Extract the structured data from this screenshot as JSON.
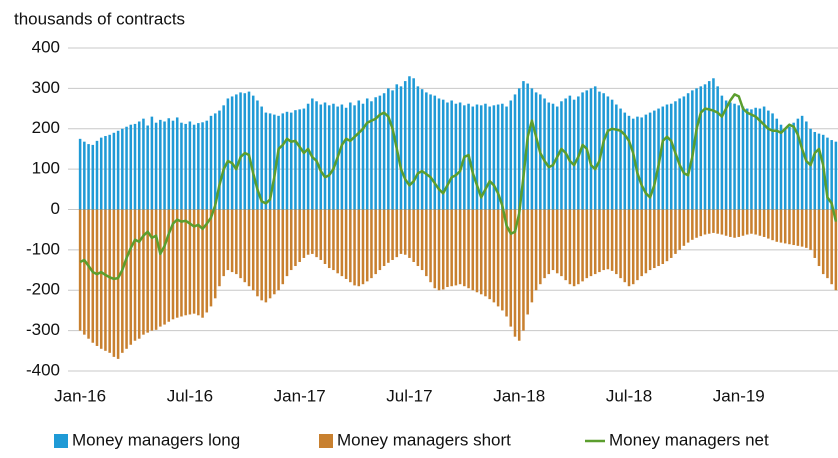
{
  "chart_data": {
    "type": "bar",
    "subtitle": "thousands of contracts",
    "categories": [
      "Jan-16",
      null,
      null,
      null,
      null,
      null,
      null,
      null,
      null,
      null,
      null,
      null,
      null,
      null,
      null,
      null,
      null,
      null,
      null,
      null,
      null,
      null,
      null,
      null,
      null,
      null,
      "Jul-16",
      null,
      null,
      null,
      null,
      null,
      null,
      null,
      null,
      null,
      null,
      null,
      null,
      null,
      null,
      null,
      null,
      null,
      null,
      null,
      null,
      null,
      null,
      null,
      null,
      null,
      "Jan-17",
      null,
      null,
      null,
      null,
      null,
      null,
      null,
      null,
      null,
      null,
      null,
      null,
      null,
      null,
      null,
      null,
      null,
      null,
      null,
      null,
      null,
      null,
      null,
      null,
      null,
      "Jul-17",
      null,
      null,
      null,
      null,
      null,
      null,
      null,
      null,
      null,
      null,
      null,
      null,
      null,
      null,
      null,
      null,
      null,
      null,
      null,
      null,
      null,
      null,
      null,
      null,
      null,
      "Jan-18",
      null,
      null,
      null,
      null,
      null,
      null,
      null,
      null,
      null,
      null,
      null,
      null,
      null,
      null,
      null,
      null,
      null,
      null,
      null,
      null,
      null,
      null,
      null,
      null,
      null,
      "Jul-18",
      null,
      null,
      null,
      null,
      null,
      null,
      null,
      null,
      null,
      null,
      null,
      null,
      null,
      null,
      null,
      null,
      null,
      null,
      null,
      null,
      null,
      null,
      null,
      null,
      null,
      "Jan-19",
      null,
      null,
      null,
      null,
      null,
      null,
      null,
      null,
      null,
      null,
      null,
      null,
      null,
      null,
      null,
      null,
      null,
      null,
      null,
      null,
      null,
      null,
      null
    ],
    "series": [
      {
        "name": "Money managers long",
        "kind": "bar",
        "color": "#1f9ad6",
        "values": [
          175,
          168,
          162,
          160,
          170,
          178,
          182,
          185,
          190,
          195,
          200,
          205,
          210,
          212,
          218,
          225,
          208,
          230,
          215,
          222,
          218,
          226,
          220,
          228,
          215,
          212,
          218,
          210,
          214,
          216,
          220,
          232,
          238,
          245,
          258,
          275,
          280,
          285,
          290,
          288,
          292,
          282,
          270,
          255,
          240,
          238,
          235,
          232,
          238,
          242,
          240,
          246,
          248,
          250,
          262,
          275,
          268,
          260,
          265,
          258,
          262,
          255,
          260,
          252,
          265,
          258,
          270,
          262,
          275,
          268,
          278,
          282,
          288,
          300,
          295,
          310,
          305,
          318,
          330,
          325,
          305,
          298,
          290,
          285,
          282,
          275,
          272,
          265,
          270,
          262,
          265,
          258,
          262,
          255,
          260,
          258,
          262,
          255,
          258,
          260,
          262,
          255,
          270,
          285,
          300,
          318,
          312,
          300,
          290,
          285,
          275,
          265,
          262,
          255,
          268,
          275,
          282,
          272,
          280,
          290,
          295,
          300,
          305,
          292,
          288,
          280,
          272,
          260,
          250,
          240,
          232,
          225,
          230,
          228,
          235,
          240,
          245,
          250,
          255,
          260,
          262,
          268,
          275,
          280,
          288,
          295,
          300,
          305,
          310,
          318,
          325,
          305,
          282,
          270,
          265,
          262,
          258,
          255,
          250,
          248,
          252,
          250,
          255,
          245,
          238,
          225,
          210,
          200,
          205,
          215,
          225,
          232,
          218,
          200,
          192,
          188,
          185,
          178,
          172,
          168
        ]
      },
      {
        "name": "Money managers short",
        "kind": "bar",
        "color": "#c8802f",
        "values": [
          -300,
          -310,
          -320,
          -330,
          -338,
          -345,
          -350,
          -355,
          -365,
          -370,
          -355,
          -345,
          -335,
          -325,
          -320,
          -310,
          -305,
          -300,
          -298,
          -290,
          -285,
          -278,
          -272,
          -268,
          -265,
          -262,
          -260,
          -258,
          -262,
          -268,
          -255,
          -240,
          -220,
          -190,
          -165,
          -150,
          -155,
          -160,
          -170,
          -180,
          -190,
          -200,
          -215,
          -225,
          -230,
          -220,
          -210,
          -200,
          -185,
          -165,
          -150,
          -140,
          -130,
          -120,
          -112,
          -110,
          -118,
          -125,
          -135,
          -145,
          -150,
          -158,
          -165,
          -172,
          -180,
          -188,
          -190,
          -185,
          -178,
          -170,
          -160,
          -150,
          -140,
          -132,
          -125,
          -118,
          -110,
          -112,
          -120,
          -130,
          -140,
          -150,
          -165,
          -180,
          -195,
          -200,
          -198,
          -192,
          -190,
          -188,
          -185,
          -190,
          -195,
          -200,
          -205,
          -210,
          -215,
          -222,
          -230,
          -240,
          -250,
          -265,
          -290,
          -315,
          -325,
          -300,
          -260,
          -230,
          -200,
          -185,
          -170,
          -160,
          -150,
          -158,
          -165,
          -175,
          -185,
          -190,
          -185,
          -178,
          -170,
          -165,
          -160,
          -155,
          -150,
          -148,
          -152,
          -160,
          -170,
          -180,
          -190,
          -185,
          -175,
          -165,
          -158,
          -150,
          -145,
          -140,
          -135,
          -128,
          -120,
          -110,
          -100,
          -90,
          -82,
          -75,
          -70,
          -66,
          -62,
          -60,
          -58,
          -60,
          -62,
          -65,
          -68,
          -70,
          -68,
          -65,
          -62,
          -60,
          -62,
          -65,
          -68,
          -72,
          -76,
          -80,
          -82,
          -84,
          -86,
          -88,
          -90,
          -92,
          -95,
          -100,
          -120,
          -140,
          -160,
          -170,
          -185,
          -200
        ]
      },
      {
        "name": "Money managers net",
        "kind": "line",
        "color": "#5b9e2e",
        "values": [
          -130,
          -125,
          -140,
          -155,
          -160,
          -155,
          -162,
          -168,
          -172,
          -170,
          -150,
          -120,
          -95,
          -75,
          -80,
          -65,
          -55,
          -70,
          -65,
          -110,
          -90,
          -60,
          -35,
          -25,
          -30,
          -28,
          -35,
          -42,
          -38,
          -48,
          -35,
          -20,
          10,
          60,
          100,
          120,
          115,
          100,
          130,
          140,
          135,
          90,
          50,
          20,
          15,
          25,
          80,
          150,
          160,
          175,
          168,
          170,
          155,
          140,
          150,
          130,
          120,
          95,
          80,
          85,
          100,
          130,
          160,
          175,
          170,
          180,
          190,
          200,
          215,
          220,
          225,
          235,
          240,
          230,
          200,
          150,
          100,
          75,
          60,
          70,
          90,
          95,
          88,
          80,
          65,
          50,
          40,
          60,
          80,
          85,
          95,
          130,
          135,
          90,
          60,
          30,
          50,
          70,
          60,
          40,
          10,
          -40,
          -60,
          -55,
          -10,
          80,
          180,
          220,
          180,
          140,
          120,
          105,
          110,
          130,
          150,
          140,
          120,
          110,
          130,
          160,
          150,
          110,
          100,
          120,
          170,
          195,
          200,
          198,
          195,
          185,
          170,
          140,
          90,
          60,
          40,
          30,
          60,
          110,
          170,
          180,
          170,
          140,
          110,
          90,
          85,
          130,
          200,
          240,
          250,
          248,
          245,
          240,
          230,
          250,
          270,
          285,
          280,
          250,
          240,
          235,
          230,
          220,
          210,
          200,
          195,
          195,
          190,
          200,
          210,
          205,
          185,
          150,
          120,
          110,
          140,
          150,
          110,
          30,
          15,
          -30
        ]
      }
    ],
    "ylim": [
      -400,
      400
    ],
    "yticks": [
      -400,
      -300,
      -200,
      -100,
      0,
      100,
      200,
      300,
      400
    ],
    "grid": true
  }
}
